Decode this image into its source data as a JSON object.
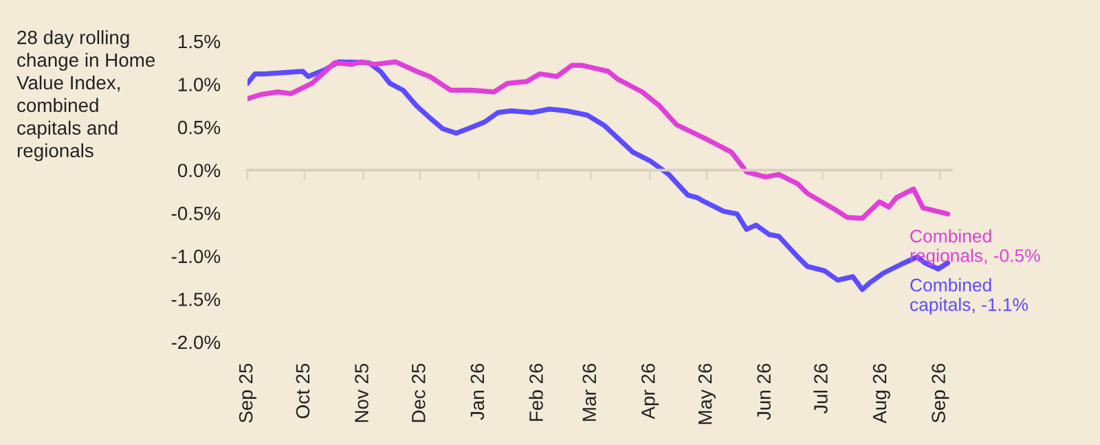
{
  "chart_data": {
    "type": "line",
    "title": "28 day rolling\nchange in Home\nValue Index,\ncombined\ncapitals and\nregionals",
    "xlim": [
      "2025-09-01",
      "2026-09-07"
    ],
    "xticks": [
      {
        "value": "2025-09-01",
        "label": "Sep 25"
      },
      {
        "value": "2025-10-01",
        "label": "Oct 25"
      },
      {
        "value": "2025-11-01",
        "label": "Nov 25"
      },
      {
        "value": "2025-12-01",
        "label": "Dec 25"
      },
      {
        "value": "2026-01-01",
        "label": "Jan 26"
      },
      {
        "value": "2026-02-01",
        "label": "Feb 26"
      },
      {
        "value": "2026-03-01",
        "label": "Mar 26"
      },
      {
        "value": "2026-04-01",
        "label": "Apr 26"
      },
      {
        "value": "2026-05-01",
        "label": "May 26"
      },
      {
        "value": "2026-06-01",
        "label": "Jun 26"
      },
      {
        "value": "2026-07-01",
        "label": "Jul 26"
      },
      {
        "value": "2026-08-01",
        "label": "Aug 26"
      },
      {
        "value": "2026-09-01",
        "label": "Sep 26"
      }
    ],
    "ylim": [
      -2.0,
      1.5
    ],
    "yticks": [
      {
        "value": -2.0,
        "label": "-2.0%"
      },
      {
        "value": -1.5,
        "label": "-1.5%"
      },
      {
        "value": -1.0,
        "label": "-1.0%"
      },
      {
        "value": -0.5,
        "label": "-0.5%"
      },
      {
        "value": 0.0,
        "label": "0.0%"
      },
      {
        "value": 0.5,
        "label": "0.5%"
      },
      {
        "value": 1.0,
        "label": "1.0%"
      },
      {
        "value": 1.5,
        "label": "1.5%"
      }
    ],
    "legend": false,
    "marker": "none",
    "line_style": "solid",
    "series": [
      {
        "name": "Combined\ncapitals, -1.1%",
        "color": "#5b4cff",
        "x": [
          "2025-09-01",
          "2025-09-05",
          "2025-09-10",
          "2025-09-30",
          "2025-10-03",
          "2025-10-12",
          "2025-10-19",
          "2025-11-04",
          "2025-11-10",
          "2025-11-15",
          "2025-11-22",
          "2025-11-29",
          "2025-12-06",
          "2025-12-13",
          "2025-12-20",
          "2025-12-26",
          "2026-01-04",
          "2026-01-11",
          "2026-01-18",
          "2026-01-29",
          "2026-02-07",
          "2026-02-16",
          "2026-02-27",
          "2026-03-08",
          "2026-03-23",
          "2026-04-01",
          "2026-04-11",
          "2026-04-21",
          "2026-04-26",
          "2026-04-30",
          "2026-05-10",
          "2026-05-17",
          "2026-05-22",
          "2026-05-27",
          "2026-06-03",
          "2026-06-08",
          "2026-06-18",
          "2026-06-23",
          "2026-07-02",
          "2026-07-09",
          "2026-07-17",
          "2026-07-22",
          "2026-07-26",
          "2026-08-02",
          "2026-08-12",
          "2026-08-20",
          "2026-08-24",
          "2026-08-31",
          "2026-09-05"
        ],
        "values": [
          1.01,
          1.12,
          1.12,
          1.15,
          1.09,
          1.17,
          1.26,
          1.25,
          1.15,
          1.01,
          0.93,
          0.75,
          0.61,
          0.48,
          0.43,
          0.48,
          0.56,
          0.67,
          0.69,
          0.67,
          0.71,
          0.69,
          0.64,
          0.52,
          0.21,
          0.11,
          -0.05,
          -0.29,
          -0.32,
          -0.37,
          -0.48,
          -0.51,
          -0.69,
          -0.64,
          -0.75,
          -0.77,
          -1.01,
          -1.12,
          -1.17,
          -1.28,
          -1.24,
          -1.39,
          -1.31,
          -1.2,
          -1.09,
          -1.01,
          -1.08,
          -1.15,
          -1.08
        ]
      },
      {
        "name": "Combined\nregionals, -0.5%",
        "color": "#e040d8",
        "x": [
          "2025-09-01",
          "2025-09-08",
          "2025-09-17",
          "2025-09-24",
          "2025-10-05",
          "2025-10-12",
          "2025-10-17",
          "2025-10-26",
          "2025-10-31",
          "2025-11-07",
          "2025-11-18",
          "2025-11-29",
          "2025-12-06",
          "2025-12-17",
          "2025-12-28",
          "2026-01-09",
          "2026-01-16",
          "2026-01-26",
          "2026-02-02",
          "2026-02-11",
          "2026-02-19",
          "2026-02-24",
          "2026-03-10",
          "2026-03-15",
          "2026-03-28",
          "2026-04-06",
          "2026-04-15",
          "2026-04-30",
          "2026-05-14",
          "2026-05-22",
          "2026-06-01",
          "2026-06-08",
          "2026-06-18",
          "2026-06-23",
          "2026-07-07",
          "2026-07-14",
          "2026-07-22",
          "2026-07-31",
          "2026-08-05",
          "2026-08-09",
          "2026-08-18",
          "2026-08-23",
          "2026-09-05"
        ],
        "values": [
          0.83,
          0.88,
          0.91,
          0.89,
          1.01,
          1.15,
          1.25,
          1.23,
          1.26,
          1.23,
          1.26,
          1.15,
          1.09,
          0.93,
          0.93,
          0.91,
          1.01,
          1.03,
          1.12,
          1.09,
          1.22,
          1.22,
          1.15,
          1.06,
          0.91,
          0.75,
          0.53,
          0.37,
          0.21,
          -0.02,
          -0.08,
          -0.05,
          -0.16,
          -0.27,
          -0.45,
          -0.55,
          -0.56,
          -0.37,
          -0.43,
          -0.32,
          -0.22,
          -0.44,
          -0.51
        ]
      }
    ]
  }
}
